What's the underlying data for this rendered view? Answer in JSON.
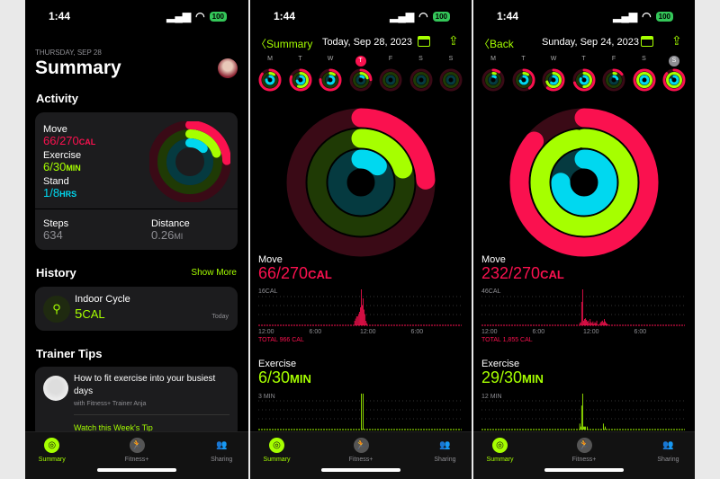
{
  "colors": {
    "move": "#fa114f",
    "exercise": "#a6ff00",
    "stand": "#00d8f0",
    "accent": "#a6ff00"
  },
  "status": {
    "time": "1:44",
    "battery": "100",
    "icons": [
      "location-arrow-icon",
      "signal-icon",
      "wifi-icon",
      "battery-icon"
    ]
  },
  "tabbar": {
    "items": [
      {
        "label": "Summary",
        "icon": "activity-rings-icon"
      },
      {
        "label": "Fitness+",
        "icon": "runner-icon"
      },
      {
        "label": "Sharing",
        "icon": "people-icon"
      }
    ]
  },
  "summary": {
    "date": "THURSDAY, SEP 28",
    "title": "Summary",
    "activity": {
      "heading": "Activity",
      "move_label": "Move",
      "move_value": "66/270",
      "move_unit": "CAL",
      "exercise_label": "Exercise",
      "exercise_value": "6/30",
      "exercise_unit": "MIN",
      "stand_label": "Stand",
      "stand_value": "1/8",
      "stand_unit": "HRS",
      "rings": {
        "move": 0.244,
        "exercise": 0.2,
        "stand": 0.125
      },
      "steps_label": "Steps",
      "steps_value": "634",
      "distance_label": "Distance",
      "distance_value": "0.26",
      "distance_unit": "MI"
    },
    "history": {
      "heading": "History",
      "show_more": "Show More",
      "workout": "Indoor Cycle",
      "workout_value": "5",
      "workout_unit": "CAL",
      "when": "Today"
    },
    "tips": {
      "heading": "Trainer Tips",
      "title": "How to fit exercise into your busiest days",
      "subtitle": "with Fitness+ Trainer Anja",
      "link": "Watch this Week's Tip"
    }
  },
  "days": [
    {
      "back": "Summary",
      "title": "Today, Sep 28, 2023",
      "week": [
        {
          "l": "M",
          "r": [
            0.85,
            0.1,
            0.75
          ]
        },
        {
          "l": "T",
          "r": [
            0.8,
            0.55,
            0.7
          ]
        },
        {
          "l": "W",
          "r": [
            0.75,
            0.1,
            0.6
          ]
        },
        {
          "l": "T",
          "r": [
            0.244,
            0.2,
            0.125
          ],
          "sel": true
        },
        {
          "l": "F",
          "r": [
            0,
            0,
            0
          ]
        },
        {
          "l": "S",
          "r": [
            0,
            0,
            0
          ]
        },
        {
          "l": "S",
          "r": [
            0,
            0,
            0
          ]
        }
      ],
      "rings": {
        "move": 0.244,
        "exercise": 0.2,
        "stand": 0.125
      },
      "move_label": "Move",
      "move_value": "66/270",
      "move_unit": "CAL",
      "move_max": "16CAL",
      "move_total": "TOTAL 966 CAL",
      "exercise_label": "Exercise",
      "exercise_value": "6/30",
      "exercise_unit": "MIN",
      "exercise_max": "3 MIN",
      "x_ticks": [
        "12:00",
        "6:00",
        "12:00",
        "6:00"
      ],
      "chart_data": [
        {
          "type": "bar",
          "series": "move",
          "ymax": 16,
          "values": [
            0,
            0,
            0,
            0,
            0,
            0,
            0,
            0,
            0,
            0,
            0,
            0,
            0,
            0,
            0,
            0,
            0,
            0,
            0,
            0,
            0,
            0,
            0,
            0,
            0,
            0,
            0,
            0,
            0,
            0,
            0,
            0,
            0,
            0,
            0,
            0,
            0,
            0,
            0,
            0,
            0,
            0,
            0,
            0,
            0,
            0,
            0,
            0,
            0,
            0,
            0,
            0,
            0,
            0,
            0,
            0,
            0,
            0,
            0,
            0,
            0,
            0,
            0,
            0,
            0,
            0,
            0,
            0,
            0,
            0,
            0,
            0,
            0,
            0,
            0,
            0,
            0,
            0,
            0,
            0,
            0,
            0,
            0,
            0,
            0,
            0,
            0,
            0,
            0,
            0,
            0,
            0,
            0,
            0,
            0,
            0,
            0,
            0,
            0,
            0,
            0,
            0,
            2,
            3,
            4,
            4,
            5,
            6,
            8,
            16,
            9,
            12,
            7,
            5,
            2,
            1
          ]
        },
        {
          "type": "bar",
          "series": "exercise",
          "ymax": 3,
          "values": [
            0,
            0,
            0,
            0,
            0,
            0,
            0,
            0,
            0,
            0,
            0,
            0,
            0,
            0,
            0,
            0,
            0,
            0,
            0,
            0,
            0,
            0,
            0,
            0,
            0,
            0,
            0,
            0,
            0,
            0,
            0,
            0,
            0,
            0,
            0,
            0,
            0,
            0,
            0,
            0,
            0,
            0,
            0,
            0,
            0,
            0,
            0,
            0,
            0,
            0,
            0,
            0,
            0,
            0,
            0,
            0,
            0,
            0,
            0,
            0,
            0,
            0,
            0,
            0,
            0,
            0,
            0,
            0,
            0,
            0,
            0,
            0,
            0,
            0,
            0,
            0,
            0,
            0,
            0,
            0,
            0,
            0,
            0,
            0,
            0,
            0,
            0,
            0,
            0,
            0,
            0,
            0,
            0,
            0,
            0,
            0,
            0,
            0,
            0,
            0,
            0,
            0,
            0,
            0,
            0,
            0,
            0,
            0,
            0,
            3,
            0,
            3
          ]
        }
      ]
    },
    {
      "back": "Back",
      "title": "Sunday, Sep 24, 2023",
      "week": [
        {
          "l": "M",
          "r": [
            0.1,
            0.05,
            0.1
          ]
        },
        {
          "l": "T",
          "r": [
            0.4,
            0.1,
            0.7
          ]
        },
        {
          "l": "W",
          "r": [
            0.6,
            0.7,
            0.6
          ]
        },
        {
          "l": "T",
          "r": [
            0.7,
            0.5,
            0.8
          ]
        },
        {
          "l": "F",
          "r": [
            0.15,
            0.05,
            0.2
          ]
        },
        {
          "l": "S",
          "r": [
            1,
            1,
            1
          ]
        },
        {
          "l": "S",
          "r": [
            0.86,
            0.97,
            0.75
          ],
          "sel": true
        }
      ],
      "rings": {
        "move": 0.86,
        "exercise": 0.97,
        "stand": 0.75
      },
      "move_label": "Move",
      "move_value": "232/270",
      "move_unit": "CAL",
      "move_max": "46CAL",
      "move_total": "TOTAL 1,855 CAL",
      "exercise_label": "Exercise",
      "exercise_value": "29/30",
      "exercise_unit": "MIN",
      "exercise_max": "12 MIN",
      "x_ticks": [
        "12:00",
        "6:00",
        "12:00",
        "6:00"
      ],
      "chart_data": [
        {
          "type": "bar",
          "series": "move",
          "ymax": 46,
          "values": [
            0,
            0,
            0,
            0,
            0,
            0,
            0,
            0,
            0,
            0,
            0,
            0,
            0,
            0,
            0,
            0,
            0,
            0,
            0,
            0,
            0,
            0,
            0,
            0,
            0,
            0,
            0,
            0,
            0,
            0,
            0,
            0,
            0,
            0,
            0,
            0,
            0,
            0,
            0,
            0,
            0,
            0,
            0,
            0,
            0,
            0,
            0,
            0,
            0,
            0,
            0,
            0,
            0,
            0,
            0,
            0,
            0,
            0,
            0,
            0,
            0,
            0,
            0,
            0,
            0,
            0,
            0,
            0,
            0,
            0,
            0,
            0,
            0,
            0,
            0,
            0,
            0,
            0,
            0,
            0,
            0,
            0,
            0,
            0,
            0,
            0,
            0,
            0,
            0,
            0,
            0,
            0,
            0,
            0,
            0,
            0,
            0,
            0,
            0,
            0,
            0,
            0,
            0,
            0,
            3,
            4,
            30,
            46,
            6,
            8,
            9,
            7,
            5,
            6,
            3,
            8,
            4,
            3,
            5,
            2,
            4,
            3,
            6,
            1,
            0,
            2,
            4,
            5,
            6,
            4,
            8,
            5,
            3,
            2,
            1
          ]
        },
        {
          "type": "bar",
          "series": "exercise",
          "ymax": 12,
          "values": [
            0,
            0,
            0,
            0,
            0,
            0,
            0,
            0,
            0,
            0,
            0,
            0,
            0,
            0,
            0,
            0,
            0,
            0,
            0,
            0,
            0,
            0,
            0,
            0,
            0,
            0,
            0,
            0,
            0,
            0,
            0,
            0,
            0,
            0,
            0,
            0,
            0,
            0,
            0,
            0,
            0,
            0,
            0,
            0,
            0,
            0,
            0,
            0,
            0,
            0,
            0,
            0,
            0,
            0,
            0,
            0,
            0,
            0,
            0,
            0,
            0,
            0,
            0,
            0,
            0,
            0,
            0,
            0,
            0,
            0,
            0,
            0,
            0,
            0,
            0,
            0,
            0,
            0,
            0,
            0,
            0,
            0,
            0,
            0,
            0,
            0,
            0,
            0,
            0,
            0,
            0,
            0,
            0,
            0,
            0,
            0,
            0,
            0,
            0,
            0,
            0,
            0,
            0,
            0,
            2,
            1,
            8,
            12,
            1,
            1,
            1,
            0,
            1,
            0,
            0,
            0,
            0,
            0,
            0,
            0,
            0,
            0,
            0,
            0,
            0,
            0,
            0,
            0,
            0,
            2,
            0,
            1,
            0,
            0,
            0
          ]
        }
      ]
    }
  ]
}
